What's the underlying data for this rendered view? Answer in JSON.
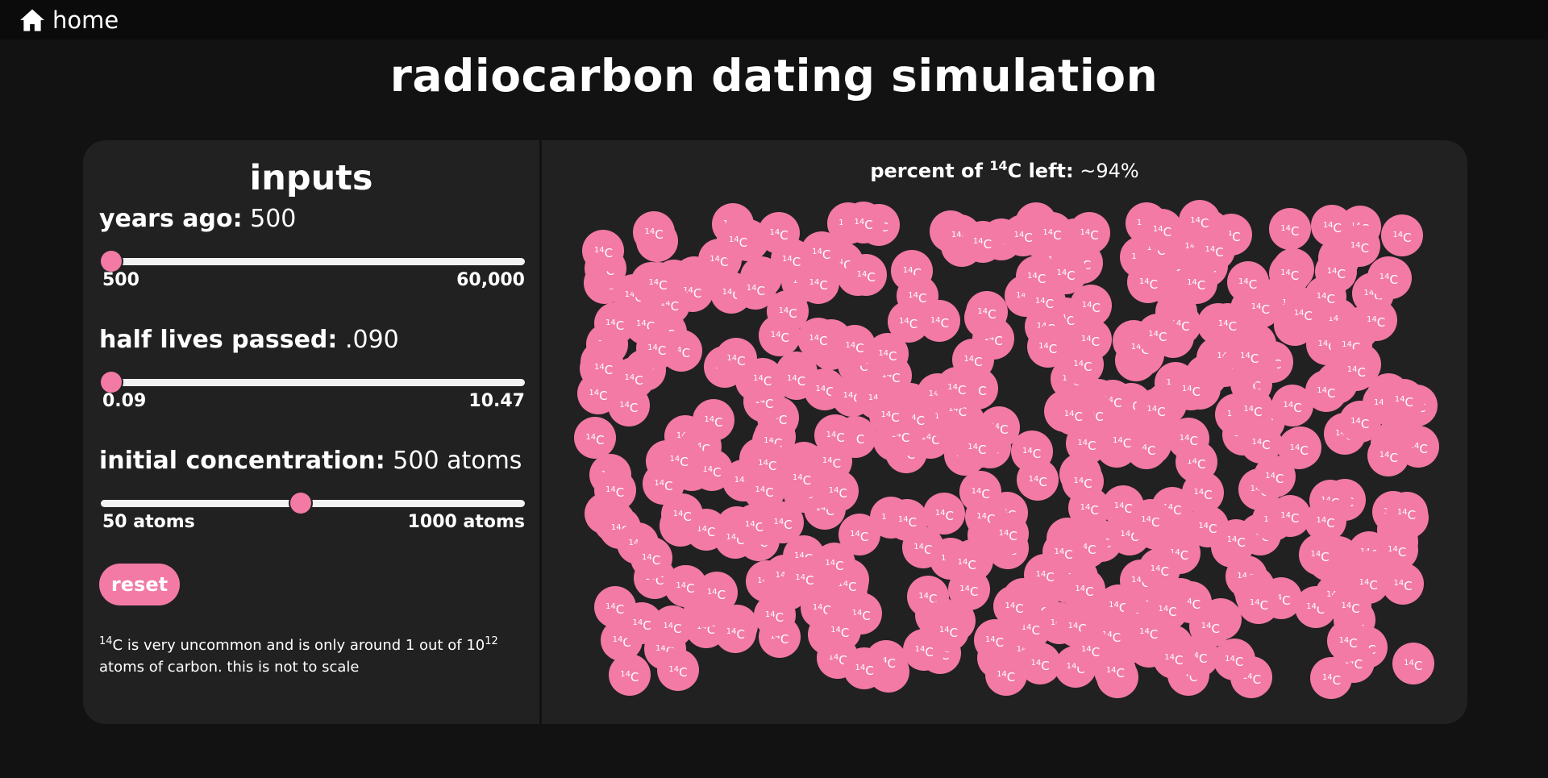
{
  "nav": {
    "home_label": "home",
    "home_icon": "home-icon"
  },
  "page": {
    "title": "radiocarbon dating simulation"
  },
  "inputs": {
    "title": "inputs",
    "years_ago": {
      "label": "years ago:",
      "value": "500",
      "min_label": "500",
      "max_label": "60,000",
      "fraction": 0.0
    },
    "half_lives": {
      "label": "half lives passed:",
      "value": ".090",
      "min_label": "0.09",
      "max_label": "10.47",
      "fraction": 0.0
    },
    "concentration": {
      "label": "initial concentration:",
      "value": "500 atoms",
      "min_label": "50 atoms",
      "max_label": "1000 atoms",
      "fraction": 0.47
    },
    "reset_label": "reset",
    "note": {
      "iso_sup": "14",
      "before": "C is very uncommon and is only around 1 out of 10",
      "exp_sup": "12",
      "after": "atoms of carbon. this is not to scale"
    }
  },
  "simulation": {
    "percent_prefix": "percent of ",
    "iso_sup": "14",
    "percent_mid": "C left:",
    "percent_value": "~94%",
    "atom_sup": "14",
    "atom_symbol": "C",
    "accent_color": "#f27aa5"
  }
}
